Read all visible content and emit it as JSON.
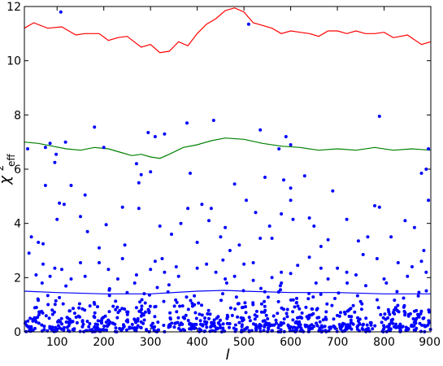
{
  "chart_data": {
    "type": "scatter",
    "xlabel": "l",
    "ylabel_base": "χ",
    "ylabel_sup": "2",
    "ylabel_sub": "eff",
    "xlim": [
      30,
      900
    ],
    "ylim": [
      0,
      12
    ],
    "xticks": [
      100,
      200,
      300,
      400,
      500,
      600,
      700,
      800,
      900
    ],
    "yticks": [
      0,
      2,
      4,
      6,
      8,
      10,
      12
    ],
    "grid": false,
    "legend": "none",
    "colors": {
      "points": "#0000ff",
      "red": "#ff0000",
      "green": "#008000",
      "blue": "#0000ff"
    },
    "lines": [
      {
        "color": "red",
        "x": [
          30,
          50,
          80,
          110,
          140,
          160,
          190,
          210,
          230,
          250,
          280,
          300,
          320,
          340,
          360,
          380,
          400,
          420,
          440,
          460,
          480,
          500,
          520,
          540,
          560,
          580,
          600,
          620,
          640,
          660,
          680,
          700,
          720,
          740,
          760,
          780,
          800,
          820,
          850,
          880,
          900
        ],
        "y": [
          11.2,
          11.4,
          11.2,
          11.25,
          10.95,
          11.0,
          11.0,
          10.75,
          10.85,
          10.9,
          10.5,
          10.6,
          10.3,
          10.35,
          10.7,
          10.55,
          11.0,
          11.35,
          11.55,
          11.85,
          11.95,
          11.8,
          11.4,
          11.3,
          11.2,
          11.0,
          11.1,
          11.05,
          11.0,
          10.9,
          11.1,
          11.1,
          11.0,
          11.1,
          11.0,
          11.0,
          11.05,
          10.85,
          10.95,
          10.6,
          10.7
        ]
      },
      {
        "color": "green",
        "x": [
          30,
          60,
          90,
          120,
          150,
          180,
          210,
          240,
          260,
          280,
          300,
          320,
          340,
          370,
          400,
          430,
          460,
          500,
          540,
          580,
          620,
          660,
          700,
          740,
          780,
          820,
          860,
          900
        ],
        "y": [
          7.0,
          6.95,
          6.85,
          6.75,
          6.7,
          6.8,
          6.75,
          6.6,
          6.5,
          6.55,
          6.45,
          6.4,
          6.55,
          6.8,
          6.9,
          7.05,
          7.15,
          7.1,
          6.95,
          6.85,
          6.8,
          6.7,
          6.75,
          6.7,
          6.8,
          6.7,
          6.75,
          6.7
        ]
      },
      {
        "color": "blue",
        "x": [
          30,
          100,
          200,
          300,
          400,
          460,
          500,
          600,
          700,
          800,
          900
        ],
        "y": [
          1.5,
          1.45,
          1.4,
          1.4,
          1.5,
          1.53,
          1.5,
          1.45,
          1.45,
          1.4,
          1.4
        ]
      }
    ],
    "points": [
      [
        37,
        6.75
      ],
      [
        75,
        6.8
      ],
      [
        85,
        6.95
      ],
      [
        98,
        6.55
      ],
      [
        108,
        11.8
      ],
      [
        118,
        7.0
      ],
      [
        180,
        7.55
      ],
      [
        200,
        6.8
      ],
      [
        270,
        6.2
      ],
      [
        295,
        7.35
      ],
      [
        310,
        7.2
      ],
      [
        330,
        7.3
      ],
      [
        378,
        7.7
      ],
      [
        435,
        7.8
      ],
      [
        510,
        11.35
      ],
      [
        535,
        7.45
      ],
      [
        590,
        7.2
      ],
      [
        600,
        6.9
      ],
      [
        790,
        7.95
      ],
      [
        895,
        6.75
      ],
      [
        575,
        6.75
      ],
      [
        75,
        5.4
      ],
      [
        95,
        6.25
      ],
      [
        130,
        5.4
      ],
      [
        160,
        5.05
      ],
      [
        275,
        5.5
      ],
      [
        280,
        5.8
      ],
      [
        300,
        5.9
      ],
      [
        385,
        5.85
      ],
      [
        480,
        5.45
      ],
      [
        545,
        5.7
      ],
      [
        585,
        5.6
      ],
      [
        630,
        5.75
      ],
      [
        880,
        5.85
      ],
      [
        890,
        6.0
      ],
      [
        600,
        5.3
      ],
      [
        690,
        5.2
      ],
      [
        45,
        3.5
      ],
      [
        60,
        3.3
      ],
      [
        70,
        3.25
      ],
      [
        100,
        4.15
      ],
      [
        105,
        4.75
      ],
      [
        115,
        4.7
      ],
      [
        150,
        4.25
      ],
      [
        165,
        3.7
      ],
      [
        190,
        3.1
      ],
      [
        205,
        3.95
      ],
      [
        240,
        4.6
      ],
      [
        245,
        3.2
      ],
      [
        275,
        4.55
      ],
      [
        320,
        3.9
      ],
      [
        345,
        3.6
      ],
      [
        365,
        4.0
      ],
      [
        380,
        4.55
      ],
      [
        400,
        3.3
      ],
      [
        410,
        4.7
      ],
      [
        430,
        4.55
      ],
      [
        425,
        4.1
      ],
      [
        450,
        3.5
      ],
      [
        460,
        3.85
      ],
      [
        470,
        3.0
      ],
      [
        505,
        4.85
      ],
      [
        525,
        4.4
      ],
      [
        535,
        3.45
      ],
      [
        560,
        3.45
      ],
      [
        580,
        4.35
      ],
      [
        600,
        4.85
      ],
      [
        605,
        4.15
      ],
      [
        640,
        4.2
      ],
      [
        650,
        3.9
      ],
      [
        665,
        3.15
      ],
      [
        680,
        3.4
      ],
      [
        720,
        4.15
      ],
      [
        745,
        3.35
      ],
      [
        765,
        3.5
      ],
      [
        780,
        4.65
      ],
      [
        790,
        4.6
      ],
      [
        815,
        3.5
      ],
      [
        845,
        4.1
      ],
      [
        865,
        3.85
      ],
      [
        885,
        3.0
      ],
      [
        895,
        4.85
      ],
      [
        555,
        3.9
      ],
      [
        490,
        3.2
      ],
      [
        240,
        2.7
      ],
      [
        310,
        2.6
      ],
      [
        325,
        2.7
      ],
      [
        355,
        2.4
      ],
      [
        420,
        2.5
      ],
      [
        455,
        2.65
      ],
      [
        500,
        2.5
      ],
      [
        520,
        2.55
      ],
      [
        615,
        2.45
      ],
      [
        700,
        2.35
      ],
      [
        755,
        2.85
      ],
      [
        785,
        2.7
      ],
      [
        830,
        2.55
      ],
      [
        860,
        2.4
      ],
      [
        150,
        2.55
      ],
      [
        160,
        2.05
      ],
      [
        190,
        2.55
      ],
      [
        210,
        2.3
      ],
      [
        40,
        2.9
      ],
      [
        70,
        2.5
      ],
      [
        95,
        2.35
      ],
      [
        640,
        2.75
      ],
      [
        665,
        2.35
      ],
      [
        720,
        2.2
      ],
      [
        580,
        2.2
      ],
      [
        560,
        2.0
      ],
      [
        480,
        2.05
      ],
      [
        440,
        2.2
      ],
      [
        400,
        2.35
      ],
      [
        300,
        2.3
      ],
      [
        270,
        2.1
      ],
      [
        230,
        1.95
      ],
      [
        130,
        1.95
      ],
      [
        55,
        2.1
      ],
      [
        880,
        2.6
      ],
      [
        890,
        2.2
      ],
      [
        850,
        2.05
      ],
      [
        800,
        1.95
      ],
      [
        740,
        2.1
      ],
      [
        680,
        1.95
      ],
      [
        600,
        2.15
      ],
      [
        520,
        1.9
      ],
      [
        460,
        1.95
      ],
      [
        360,
        2.05
      ],
      [
        330,
        2.2
      ],
      [
        110,
        2.3
      ],
      [
        85,
        2.05
      ]
    ],
    "dense_band": {
      "x_min": 30,
      "x_max": 900,
      "y_max": 1.8,
      "count": 760
    }
  }
}
